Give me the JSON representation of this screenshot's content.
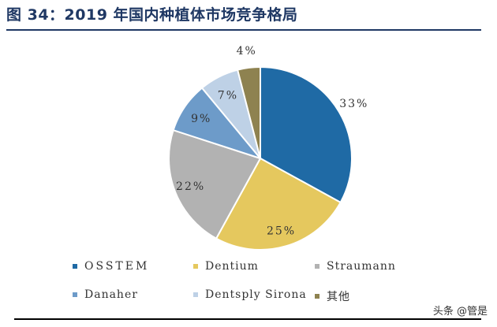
{
  "title": "图 34：2019 年国内种植体市场竞争格局",
  "watermark": "头条 @管是",
  "chart_data": {
    "type": "pie",
    "title": "图 34：2019 年国内种植体市场竞争格局",
    "start": "12 o'clock",
    "direction": "clockwise",
    "legend_position": "bottom",
    "slices": [
      {
        "name": "OSSTEM",
        "value": 33,
        "label": "33%",
        "color": "#1f6aa5"
      },
      {
        "name": "Dentium",
        "value": 25,
        "label": "25%",
        "color": "#e5c85e"
      },
      {
        "name": "Straumann",
        "value": 22,
        "label": "22%",
        "color": "#b2b2b2"
      },
      {
        "name": "Danaher",
        "value": 9,
        "label": "9%",
        "color": "#6d9bc9"
      },
      {
        "name": "Dentsply Sirona",
        "value": 7,
        "label": "7%",
        "color": "#bed1e6"
      },
      {
        "name": "其他",
        "value": 4,
        "label": "4%",
        "color": "#8e8250"
      }
    ]
  }
}
